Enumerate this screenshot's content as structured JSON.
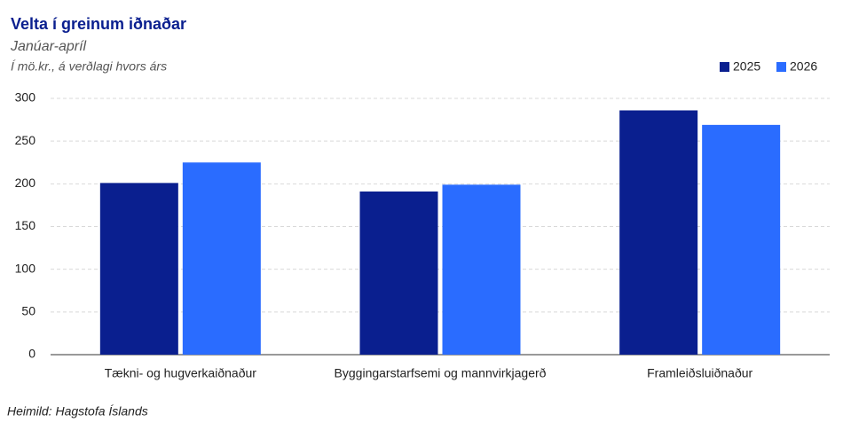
{
  "chart_data": {
    "type": "bar",
    "title": "Velta í greinum iðnaðar",
    "subtitle": "Janúar-apríl",
    "unit_label": "Í mö.kr., á verðlagi hvors árs",
    "source": "Heimild:  Hagstofa Íslands",
    "categories": [
      "Tækni- og hugverkaiðnaður",
      "Byggingarstarfsemi og mannvirkjagerð",
      "Framleiðsluiðnaður"
    ],
    "series": [
      {
        "name": "2025",
        "color": "#0a1f8f",
        "values": [
          201,
          191,
          286
        ]
      },
      {
        "name": "2026",
        "color": "#2a6cff",
        "values": [
          225,
          199,
          269
        ]
      }
    ],
    "ylim": [
      0,
      300
    ],
    "yticks": [
      0,
      50,
      100,
      150,
      200,
      250,
      300
    ],
    "grid": true,
    "legend": "top-right"
  }
}
